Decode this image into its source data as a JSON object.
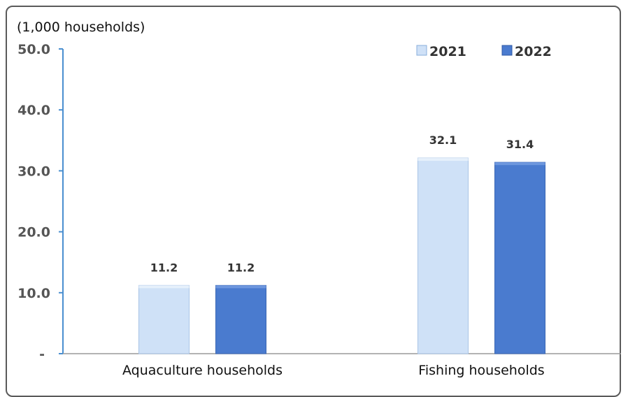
{
  "chart_data": {
    "type": "bar",
    "unit_label": "(1,000 households)",
    "categories": [
      "Aquaculture households",
      "Fishing households"
    ],
    "series": [
      {
        "name": "2021",
        "values": [
          11.2,
          32.1
        ],
        "labels": [
          "11.2",
          "32.1"
        ],
        "color": "#cfe1f7"
      },
      {
        "name": "2022",
        "values": [
          11.2,
          31.4
        ],
        "labels": [
          "11.2",
          "31.4"
        ],
        "color": "#4a7bcf"
      }
    ],
    "ylim": [
      0,
      50
    ],
    "yticks": [
      0,
      10,
      20,
      30,
      40,
      50
    ],
    "ytick_labels": [
      "-",
      "10.0",
      "20.0",
      "30.0",
      "40.0",
      "50.0"
    ],
    "grid": false,
    "legend_position": "top-right"
  }
}
